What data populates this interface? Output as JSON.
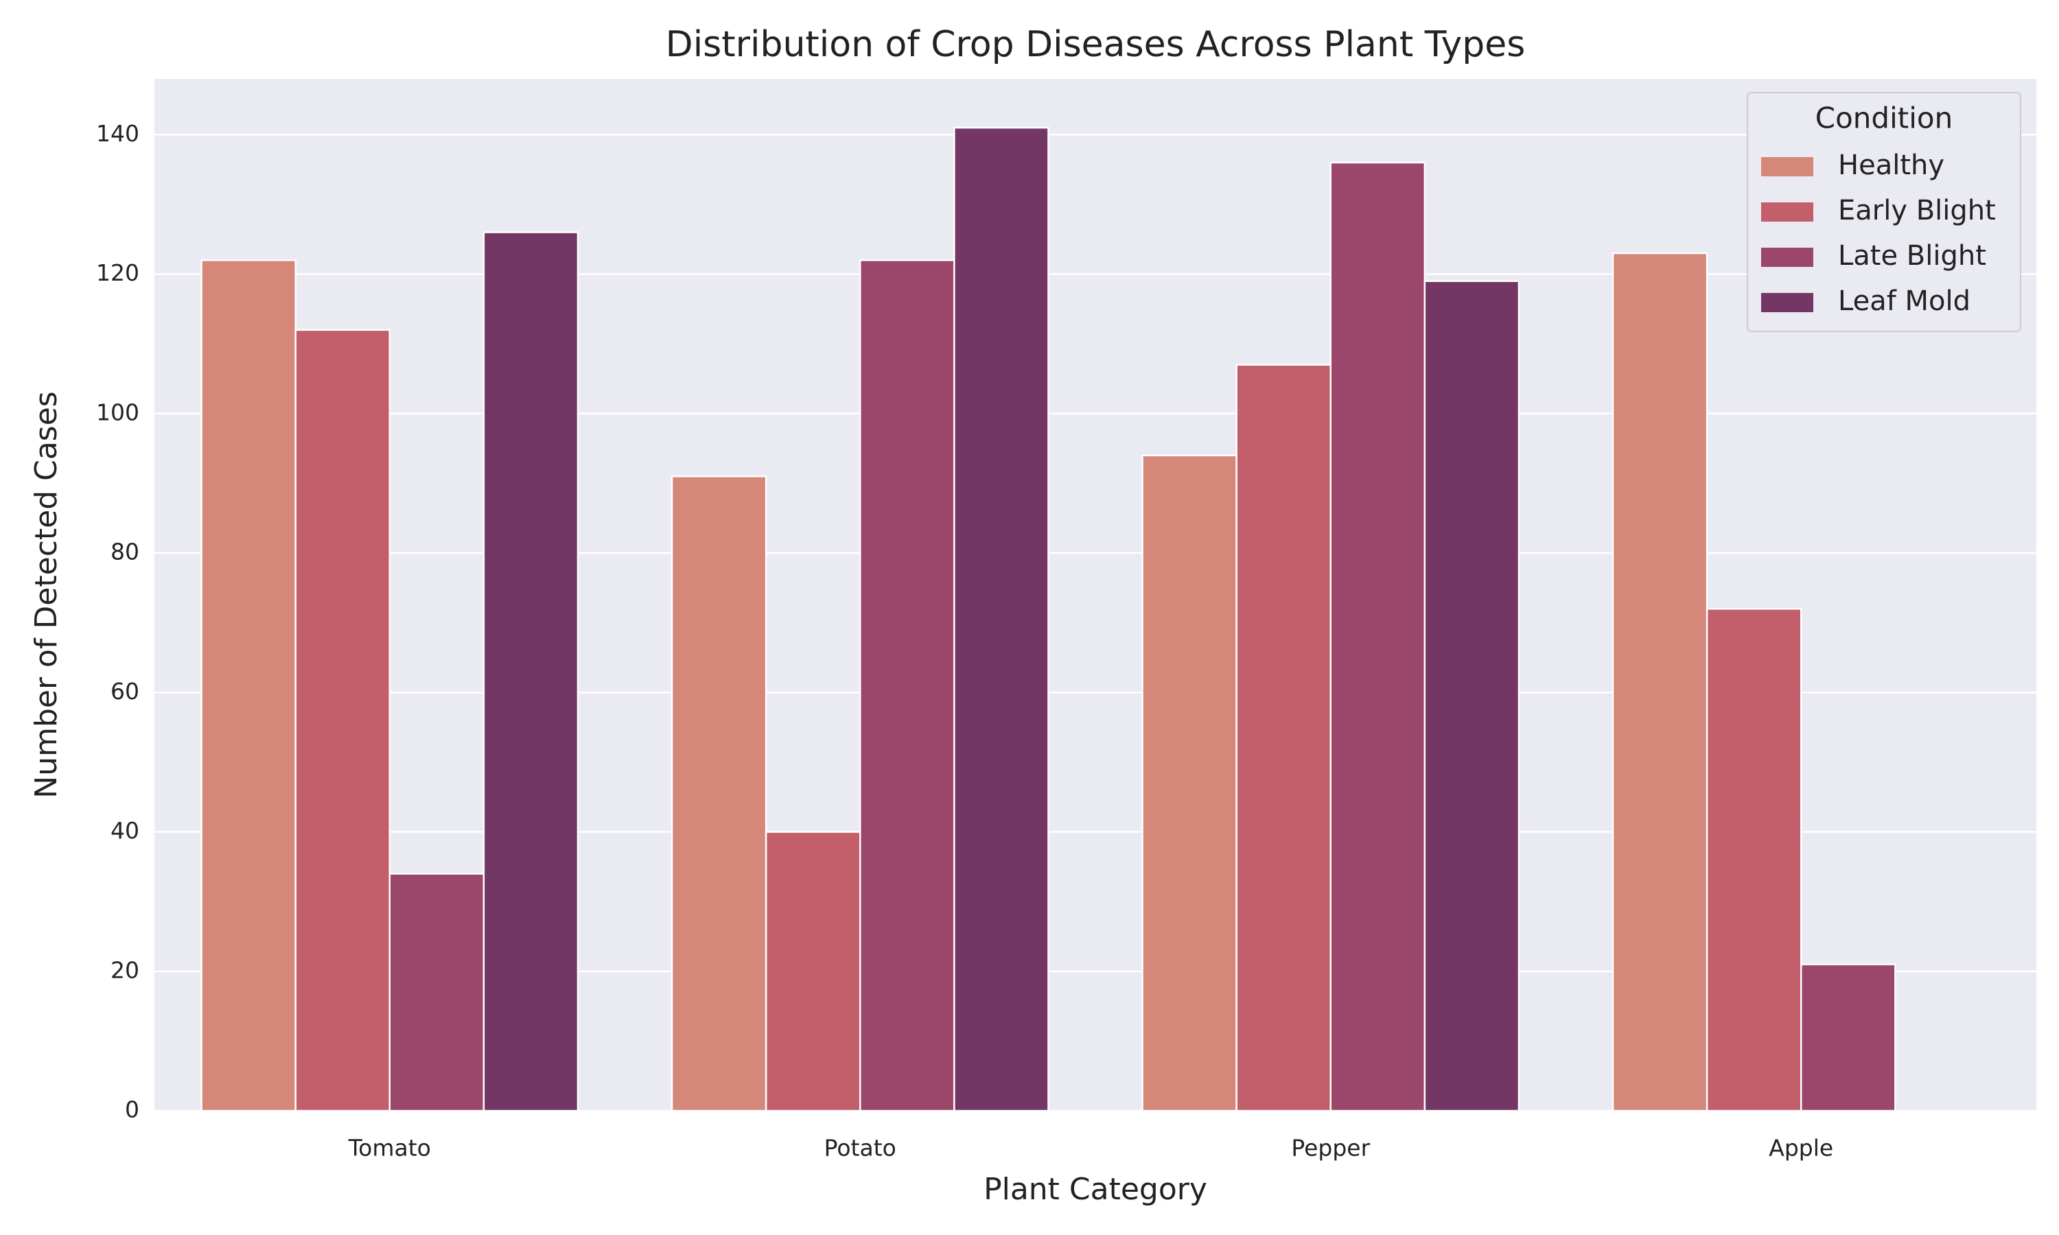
{
  "chart_data": {
    "type": "bar",
    "title": "Distribution of Crop Diseases Across Plant Types",
    "x_label": "Plant Category",
    "y_label": "Number of Detected Cases",
    "categories": [
      "Tomato",
      "Potato",
      "Pepper",
      "Apple"
    ],
    "series": [
      {
        "name": "Healthy",
        "color": "#d5877a",
        "values": [
          122,
          91,
          94,
          123
        ]
      },
      {
        "name": "Early Blight",
        "color": "#c35f6b",
        "values": [
          112,
          40,
          107,
          72
        ]
      },
      {
        "name": "Late Blight",
        "color": "#9b466b",
        "values": [
          34,
          122,
          136,
          21
        ]
      },
      {
        "name": "Leaf Mold",
        "color": "#733665",
        "values": [
          126,
          141,
          119,
          null
        ]
      }
    ],
    "legend_title": "Condition",
    "legend": "upper right",
    "ylim": [
      0,
      148
    ],
    "yticks": [
      0,
      20,
      40,
      60,
      80,
      100,
      120,
      140
    ],
    "grid": true
  }
}
